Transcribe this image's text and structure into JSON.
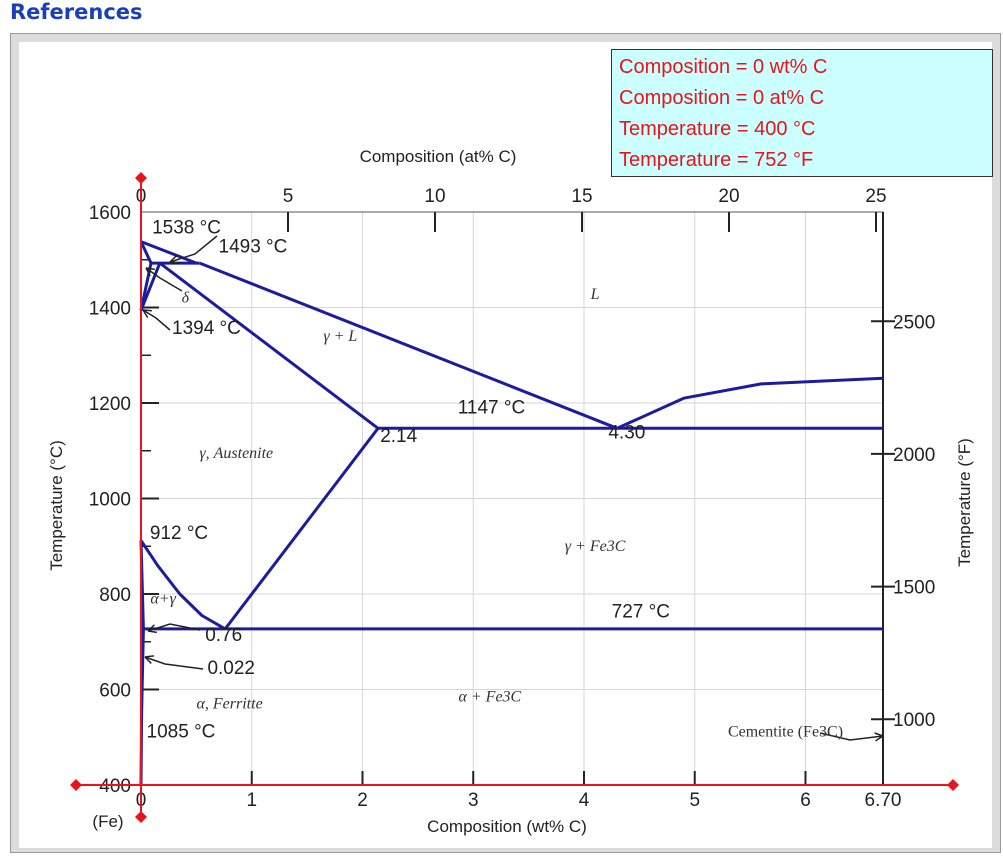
{
  "header": {
    "title": "References"
  },
  "readout": {
    "comp_wt": "Composition = 0 wt% C",
    "comp_at": "Composition = 0 at% C",
    "temp_c": "Temperature = 400 °C",
    "temp_f": "Temperature = 752 °F",
    "color": "#e8141a",
    "background": "#ccffff"
  },
  "chart_data": {
    "type": "line",
    "line_color": "#1c1c9c",
    "cursor_color": "#e8141a",
    "grid": true,
    "xlabel": "Composition (wt% C)",
    "x2label": "Composition (at% C)",
    "ylabel": "Temperature (°C)",
    "y2label": "Temperature (°F)",
    "xlim": [
      0,
      6.7
    ],
    "ylim": [
      400,
      1600
    ],
    "x_ticks": [
      "0",
      "1",
      "2",
      "3",
      "4",
      "5",
      "6",
      "6.70"
    ],
    "x_tick_values": [
      0,
      1,
      2,
      3,
      4,
      5,
      6,
      6.7
    ],
    "y_ticks": [
      "400",
      "600",
      "800",
      "1000",
      "1200",
      "1400",
      "1600"
    ],
    "y_tick_values": [
      400,
      600,
      800,
      1000,
      1200,
      1400,
      1600
    ],
    "at_ticks": [
      "0",
      "5",
      "10",
      "15",
      "20",
      "25"
    ],
    "at_tick_values": [
      0,
      5,
      10,
      15,
      20,
      25
    ],
    "f_ticks": [
      "1000",
      "1500",
      "2000",
      "2500"
    ],
    "f_tick_values": [
      1000,
      1500,
      2000,
      2500
    ],
    "fe_label": "(Fe)",
    "cursor": {
      "composition_wt": 0,
      "temperature_c": 400
    },
    "lines": [
      {
        "name": "delta-liquidus",
        "points": [
          [
            0,
            1538
          ],
          [
            0.5,
            1493
          ]
        ]
      },
      {
        "name": "delta-solidus",
        "points": [
          [
            0,
            1538
          ],
          [
            0.09,
            1493
          ]
        ]
      },
      {
        "name": "peritectic-line",
        "points": [
          [
            0.09,
            1493
          ],
          [
            0.53,
            1493
          ]
        ]
      },
      {
        "name": "delta-gamma-upper",
        "points": [
          [
            0.09,
            1493
          ],
          [
            0,
            1394
          ]
        ]
      },
      {
        "name": "delta-gamma-lower",
        "points": [
          [
            0.17,
            1493
          ],
          [
            0,
            1394
          ]
        ]
      },
      {
        "name": "liquidus-hypo",
        "points": [
          [
            0.53,
            1493
          ],
          [
            4.3,
            1147
          ]
        ]
      },
      {
        "name": "liquidus-hyper",
        "points": [
          [
            4.3,
            1147
          ],
          [
            4.9,
            1210
          ],
          [
            5.6,
            1240
          ],
          [
            6.7,
            1252
          ]
        ]
      },
      {
        "name": "solidus-austenite",
        "points": [
          [
            0.17,
            1493
          ],
          [
            2.14,
            1147
          ]
        ]
      },
      {
        "name": "eutectic-line",
        "points": [
          [
            2.14,
            1147
          ],
          [
            6.7,
            1147
          ]
        ]
      },
      {
        "name": "acm-line",
        "points": [
          [
            2.14,
            1147
          ],
          [
            0.76,
            727
          ]
        ]
      },
      {
        "name": "a3-line",
        "points": [
          [
            0,
            912
          ],
          [
            0.15,
            860
          ],
          [
            0.35,
            800
          ],
          [
            0.55,
            755
          ],
          [
            0.76,
            727
          ]
        ]
      },
      {
        "name": "alpha-gamma-boundary",
        "points": [
          [
            0,
            912
          ],
          [
            0.022,
            727
          ]
        ]
      },
      {
        "name": "eutectoid-line",
        "points": [
          [
            0.022,
            727
          ],
          [
            6.7,
            727
          ]
        ]
      },
      {
        "name": "ferrite-solvus",
        "points": [
          [
            0.022,
            727
          ],
          [
            0.005,
            550
          ],
          [
            0,
            400
          ]
        ]
      }
    ],
    "annotations": [
      {
        "text": "1538 °C",
        "x": 0.1,
        "y": 1555
      },
      {
        "text": "1493 °C",
        "x": 0.7,
        "y": 1515
      },
      {
        "text": "1394 °C",
        "x": 0.28,
        "y": 1345
      },
      {
        "text": "1147 °C",
        "x": 2.86,
        "y": 1178
      },
      {
        "text": "2.14",
        "x": 2.16,
        "y": 1118
      },
      {
        "text": "4.30",
        "x": 4.22,
        "y": 1126
      },
      {
        "text": "912 °C",
        "x": 0.08,
        "y": 915
      },
      {
        "text": "727 °C",
        "x": 4.25,
        "y": 751
      },
      {
        "text": "0.76",
        "x": 0.58,
        "y": 702
      },
      {
        "text": "0.022",
        "x": 0.6,
        "y": 632
      },
      {
        "text": "1085 °C",
        "x": 0.05,
        "y": 500
      },
      {
        "text": "Cementite (Fe3C)",
        "x": 5.3,
        "y": 502
      }
    ],
    "phase_labels": [
      {
        "text": "L",
        "x": 4.1,
        "y": 1418
      },
      {
        "text": "δ",
        "x": 0.4,
        "y": 1410
      },
      {
        "text": "γ + L",
        "x": 1.8,
        "y": 1330
      },
      {
        "text": "γ, Austenite",
        "x": 0.86,
        "y": 1085
      },
      {
        "text": "γ + Fe3C",
        "x": 4.1,
        "y": 890
      },
      {
        "text": "α+γ",
        "x": 0.2,
        "y": 780
      },
      {
        "text": "α, Ferritte",
        "x": 0.8,
        "y": 560
      },
      {
        "text": "α + Fe3C",
        "x": 3.15,
        "y": 575
      }
    ]
  }
}
